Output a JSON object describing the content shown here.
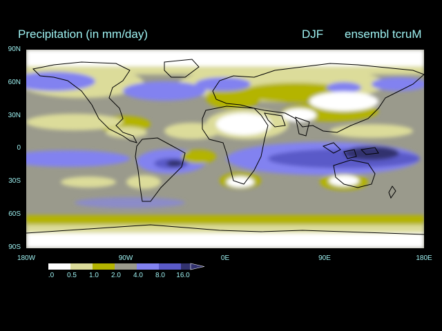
{
  "header": {
    "title": "Precipitation (in mm/day)",
    "season": "DJF",
    "model": "ensembl tcruM"
  },
  "map": {
    "lat_labels": [
      "90N",
      "60N",
      "30N",
      "0",
      "30S",
      "60S",
      "90S"
    ],
    "lon_labels": [
      "180W",
      "90W",
      "0E",
      "90E",
      "180E"
    ],
    "land_outline_color": "#000000",
    "background_color": "#000000"
  },
  "legend": {
    "labels": [
      ".0",
      "0.5",
      "1.0",
      "2.0",
      "4.0",
      "8.0",
      "16.0"
    ],
    "colors": [
      "#ffffff",
      "#dcdc9a",
      "#b4b400",
      "#9a9a8c",
      "#8282f0",
      "#5a5ac8",
      "#32326e"
    ]
  }
}
